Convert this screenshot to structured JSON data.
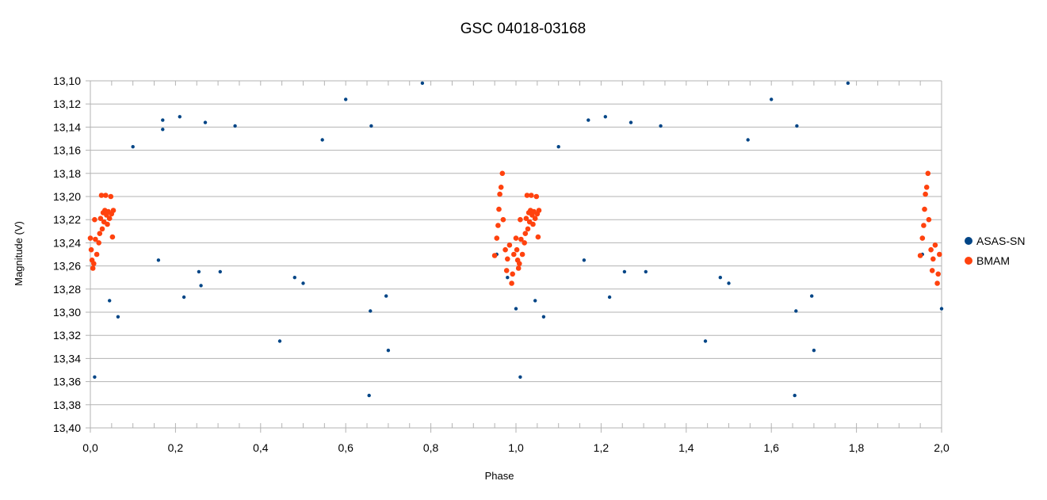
{
  "chart_data": {
    "type": "scatter",
    "title": "GSC 04018-03168",
    "xlabel": "Phase",
    "ylabel": "Magnitude (V)",
    "xlim": [
      0.0,
      2.0
    ],
    "ylim": [
      13.1,
      13.4
    ],
    "y_inverted": true,
    "x_ticks": [
      "0,0",
      "0,2",
      "0,4",
      "0,6",
      "0,8",
      "1,0",
      "1,2",
      "1,4",
      "1,6",
      "1,8",
      "2,0"
    ],
    "y_ticks": [
      "13,10",
      "13,12",
      "13,14",
      "13,16",
      "13,18",
      "13,20",
      "13,22",
      "13,24",
      "13,26",
      "13,28",
      "13,30",
      "13,32",
      "13,34",
      "13,36",
      "13,38",
      "13,40"
    ],
    "grid": "horizontal",
    "legend_position": "right",
    "series": [
      {
        "name": "ASAS-SN",
        "color": "#004586",
        "points": [
          [
            0.01,
            13.356
          ],
          [
            0.045,
            13.29
          ],
          [
            0.065,
            13.304
          ],
          [
            0.1,
            13.157
          ],
          [
            0.16,
            13.255
          ],
          [
            0.17,
            13.134
          ],
          [
            0.17,
            13.142
          ],
          [
            0.21,
            13.131
          ],
          [
            0.22,
            13.287
          ],
          [
            0.255,
            13.265
          ],
          [
            0.26,
            13.277
          ],
          [
            0.27,
            13.136
          ],
          [
            0.305,
            13.265
          ],
          [
            0.34,
            13.139
          ],
          [
            0.445,
            13.325
          ],
          [
            0.48,
            13.27
          ],
          [
            0.5,
            13.275
          ],
          [
            0.545,
            13.151
          ],
          [
            0.6,
            13.116
          ],
          [
            0.655,
            13.372
          ],
          [
            0.658,
            13.299
          ],
          [
            0.66,
            13.139
          ],
          [
            0.695,
            13.286
          ],
          [
            0.7,
            13.333
          ],
          [
            0.78,
            13.102
          ],
          [
            0.955,
            13.25
          ],
          [
            0.98,
            13.27
          ],
          [
            1.01,
            13.356
          ],
          [
            1.0,
            13.297
          ],
          [
            1.045,
            13.29
          ],
          [
            1.065,
            13.304
          ],
          [
            1.1,
            13.157
          ],
          [
            1.16,
            13.255
          ],
          [
            1.17,
            13.134
          ],
          [
            1.21,
            13.131
          ],
          [
            1.22,
            13.287
          ],
          [
            1.255,
            13.265
          ],
          [
            1.27,
            13.136
          ],
          [
            1.305,
            13.265
          ],
          [
            1.34,
            13.139
          ],
          [
            1.445,
            13.325
          ],
          [
            1.48,
            13.27
          ],
          [
            1.5,
            13.275
          ],
          [
            1.545,
            13.151
          ],
          [
            1.6,
            13.116
          ],
          [
            1.655,
            13.372
          ],
          [
            1.658,
            13.299
          ],
          [
            1.66,
            13.139
          ],
          [
            1.695,
            13.286
          ],
          [
            1.7,
            13.333
          ],
          [
            1.78,
            13.102
          ],
          [
            1.955,
            13.25
          ],
          [
            2.0,
            13.297
          ]
        ]
      },
      {
        "name": "BMAM",
        "color": "#ff420e",
        "points": [
          [
            0.0,
            13.236
          ],
          [
            0.002,
            13.246
          ],
          [
            0.004,
            13.255
          ],
          [
            0.006,
            13.262
          ],
          [
            0.008,
            13.258
          ],
          [
            0.01,
            13.22
          ],
          [
            0.012,
            13.237
          ],
          [
            0.015,
            13.25
          ],
          [
            0.02,
            13.24
          ],
          [
            0.022,
            13.232
          ],
          [
            0.024,
            13.219
          ],
          [
            0.026,
            13.199
          ],
          [
            0.028,
            13.228
          ],
          [
            0.03,
            13.214
          ],
          [
            0.032,
            13.222
          ],
          [
            0.034,
            13.212
          ],
          [
            0.036,
            13.199
          ],
          [
            0.038,
            13.216
          ],
          [
            0.04,
            13.224
          ],
          [
            0.042,
            13.213
          ],
          [
            0.045,
            13.219
          ],
          [
            0.048,
            13.2
          ],
          [
            0.05,
            13.215
          ],
          [
            0.052,
            13.235
          ],
          [
            0.054,
            13.212
          ],
          [
            0.95,
            13.251
          ],
          [
            0.955,
            13.236
          ],
          [
            0.958,
            13.225
          ],
          [
            0.96,
            13.211
          ],
          [
            0.962,
            13.198
          ],
          [
            0.965,
            13.192
          ],
          [
            0.968,
            13.18
          ],
          [
            0.97,
            13.22
          ],
          [
            0.975,
            13.246
          ],
          [
            0.978,
            13.264
          ],
          [
            0.98,
            13.254
          ],
          [
            0.985,
            13.242
          ],
          [
            0.99,
            13.275
          ],
          [
            0.992,
            13.267
          ],
          [
            0.995,
            13.25
          ],
          [
            1.0,
            13.236
          ],
          [
            1.002,
            13.246
          ],
          [
            1.004,
            13.255
          ],
          [
            1.006,
            13.262
          ],
          [
            1.008,
            13.258
          ],
          [
            1.01,
            13.22
          ],
          [
            1.012,
            13.237
          ],
          [
            1.015,
            13.25
          ],
          [
            1.02,
            13.24
          ],
          [
            1.022,
            13.232
          ],
          [
            1.024,
            13.219
          ],
          [
            1.026,
            13.199
          ],
          [
            1.028,
            13.228
          ],
          [
            1.03,
            13.214
          ],
          [
            1.032,
            13.222
          ],
          [
            1.034,
            13.212
          ],
          [
            1.036,
            13.199
          ],
          [
            1.038,
            13.216
          ],
          [
            1.04,
            13.224
          ],
          [
            1.042,
            13.213
          ],
          [
            1.045,
            13.219
          ],
          [
            1.048,
            13.2
          ],
          [
            1.05,
            13.215
          ],
          [
            1.052,
            13.235
          ],
          [
            1.054,
            13.212
          ],
          [
            1.95,
            13.251
          ],
          [
            1.955,
            13.236
          ],
          [
            1.958,
            13.225
          ],
          [
            1.96,
            13.211
          ],
          [
            1.962,
            13.198
          ],
          [
            1.965,
            13.192
          ],
          [
            1.968,
            13.18
          ],
          [
            1.97,
            13.22
          ],
          [
            1.975,
            13.246
          ],
          [
            1.978,
            13.264
          ],
          [
            1.98,
            13.254
          ],
          [
            1.985,
            13.242
          ],
          [
            1.99,
            13.275
          ],
          [
            1.992,
            13.267
          ],
          [
            1.995,
            13.25
          ]
        ]
      }
    ]
  }
}
